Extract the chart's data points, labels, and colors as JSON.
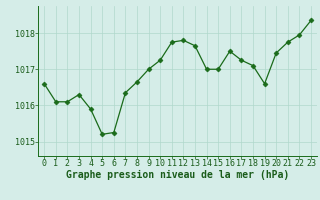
{
  "x": [
    0,
    1,
    2,
    3,
    4,
    5,
    6,
    7,
    8,
    9,
    10,
    11,
    12,
    13,
    14,
    15,
    16,
    17,
    18,
    19,
    20,
    21,
    22,
    23
  ],
  "y": [
    1016.6,
    1016.1,
    1016.1,
    1016.3,
    1015.9,
    1015.2,
    1015.25,
    1016.35,
    1016.65,
    1017.0,
    1017.25,
    1017.75,
    1017.8,
    1017.65,
    1017.0,
    1017.0,
    1017.5,
    1017.25,
    1017.1,
    1016.6,
    1017.45,
    1017.75,
    1017.95,
    1018.35
  ],
  "line_color": "#1a6b1a",
  "marker": "D",
  "marker_size": 2.5,
  "bg_color": "#d5ede8",
  "grid_color": "#b0d8cc",
  "xlabel": "Graphe pression niveau de la mer (hPa)",
  "xlabel_color": "#1a5c1a",
  "xlabel_fontsize": 7,
  "tick_color": "#1a5c1a",
  "tick_fontsize": 6,
  "ytick_labels": [
    "1015",
    "1016",
    "1017",
    "1018"
  ],
  "ytick_values": [
    1015,
    1016,
    1017,
    1018
  ],
  "ylim": [
    1014.6,
    1018.75
  ],
  "xlim": [
    -0.5,
    23.5
  ]
}
